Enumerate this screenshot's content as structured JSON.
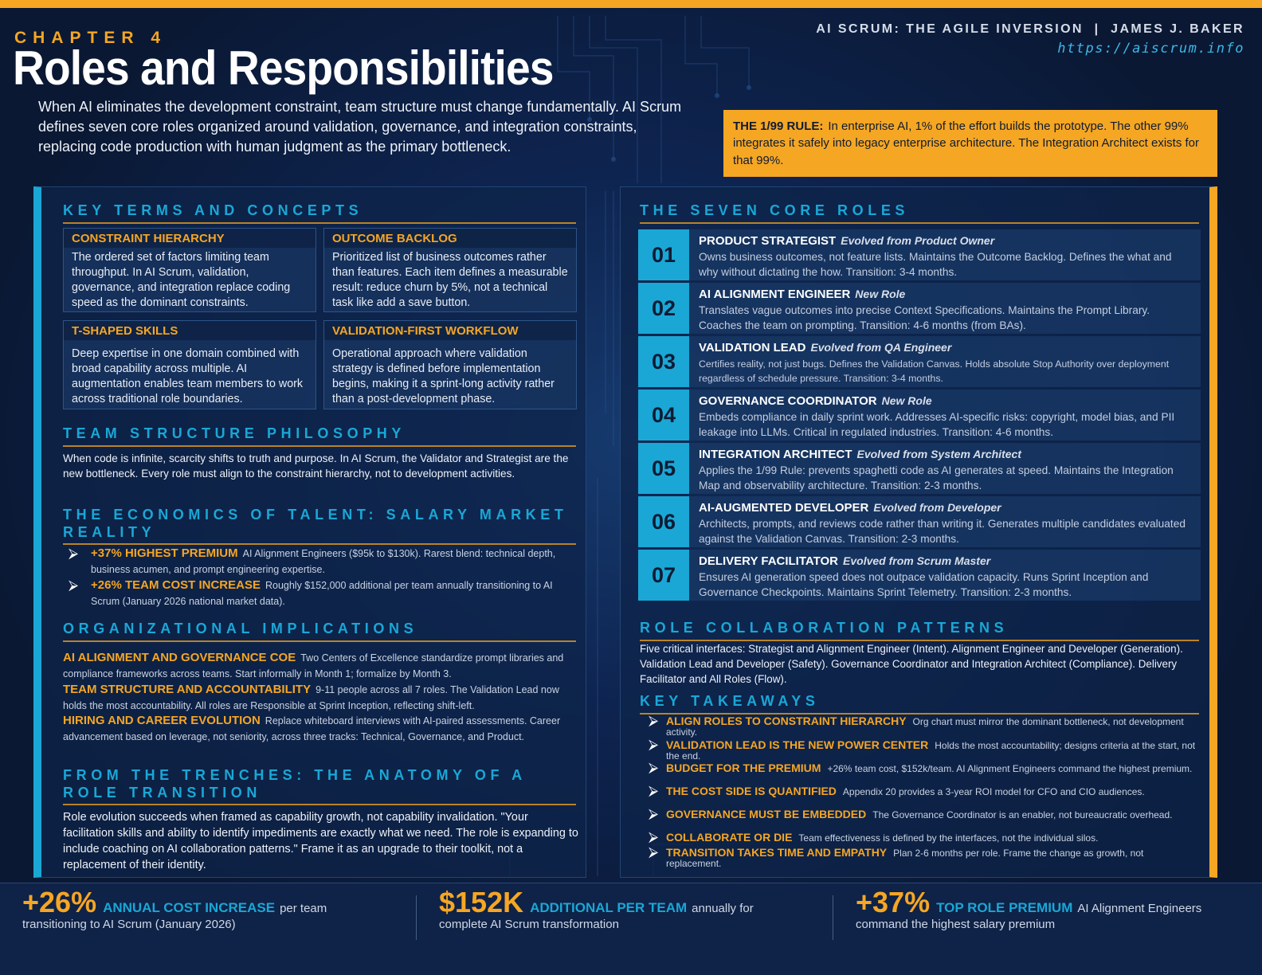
{
  "header": {
    "chapter": "CHAPTER 4",
    "title": "Roles and Responsibilities",
    "intro": "When AI eliminates the development constraint, team structure must change fundamentally. AI Scrum defines seven core roles organized around validation, governance, and integration constraints, replacing code production with human judgment as the primary bottleneck.",
    "brand_line": "AI SCRUM: THE AGILE INVERSION  |  JAMES J. BAKER",
    "url": "https://aiscrum.info"
  },
  "rule_box": {
    "label": "THE 1/99 RULE:",
    "text": "In enterprise AI, 1% of the effort builds the prototype. The other 99% integrates it safely into legacy enterprise architecture. The Integration Architect exists for that 99%."
  },
  "key_terms": {
    "heading": "KEY TERMS AND CONCEPTS",
    "items": [
      {
        "title": "CONSTRAINT HIERARCHY",
        "body": "The ordered set of factors limiting team throughput. In AI Scrum, validation, governance, and integration replace coding speed as the dominant constraints."
      },
      {
        "title": "OUTCOME BACKLOG",
        "body": "Prioritized list of business outcomes rather than features. Each item defines a measurable result: reduce churn by 5%, not a technical task like add a save button."
      },
      {
        "title": "T-SHAPED SKILLS",
        "body": "Deep expertise in one domain combined with broad capability across multiple. AI augmentation enables team members to work across traditional role boundaries."
      },
      {
        "title": "VALIDATION-FIRST WORKFLOW",
        "body": "Operational approach where validation strategy is defined before implementation begins, making it a sprint-long activity rather than a post-development phase."
      }
    ]
  },
  "team_structure": {
    "heading": "TEAM STRUCTURE PHILOSOPHY",
    "body": "When code is infinite, scarcity shifts to truth and purpose. In AI Scrum, the Validator and Strategist are the new bottleneck. Every role must align to the constraint hierarchy, not to development activities."
  },
  "economics": {
    "heading": "THE ECONOMICS OF TALENT: SALARY MARKET REALITY",
    "bullets": [
      {
        "head": "+37% HIGHEST PREMIUM",
        "text": "AI Alignment Engineers ($95k to $130k). Rarest blend: technical depth, business acumen, and prompt engineering expertise."
      },
      {
        "head": "+26% TEAM COST INCREASE",
        "text": "Roughly $152,000 additional per team annually transitioning to AI Scrum (January 2026 national market data)."
      }
    ]
  },
  "org_implications": {
    "heading": "ORGANIZATIONAL IMPLICATIONS",
    "items": [
      {
        "head": "AI ALIGNMENT AND GOVERNANCE COE",
        "text": "Two Centers of Excellence standardize prompt libraries and compliance frameworks across teams. Start informally in Month 1; formalize by Month 3."
      },
      {
        "head": "TEAM STRUCTURE AND ACCOUNTABILITY",
        "text": "9-11 people across all 7 roles. The Validation Lead now holds the most accountability. All roles are Responsible at Sprint Inception, reflecting shift-left."
      },
      {
        "head": "HIRING AND CAREER EVOLUTION",
        "text": "Replace whiteboard interviews with AI-paired assessments. Career advancement based on leverage, not seniority, across three tracks: Technical, Governance, and Product."
      }
    ]
  },
  "trenches": {
    "heading": "FROM THE TRENCHES: THE ANATOMY OF A ROLE TRANSITION",
    "body": "Role evolution succeeds when framed as capability growth, not capability invalidation. \"Your facilitation skills and ability to identify impediments are exactly what we need. The role is expanding to include coaching on AI collaboration patterns.\" Frame it as an upgrade to their toolkit, not a replacement of their identity."
  },
  "core_roles": {
    "heading": "THE SEVEN CORE ROLES",
    "items": [
      {
        "num": "01",
        "name": "PRODUCT STRATEGIST",
        "tag": "Evolved from Product Owner",
        "desc": "Owns business outcomes, not feature lists. Maintains the Outcome Backlog. Defines the what and why without dictating the how. Transition: 3-4 months."
      },
      {
        "num": "02",
        "name": "AI ALIGNMENT ENGINEER",
        "tag": "New Role",
        "desc": "Translates vague outcomes into precise Context Specifications. Maintains the Prompt Library. Coaches the team on prompting. Transition: 4-6 months (from BAs)."
      },
      {
        "num": "03",
        "name": "VALIDATION LEAD",
        "tag": "Evolved from QA Engineer",
        "desc": "Certifies reality, not just bugs. Defines the Validation Canvas. Holds absolute Stop Authority over deployment regardless of schedule pressure. Transition: 3-4 months."
      },
      {
        "num": "04",
        "name": "GOVERNANCE COORDINATOR",
        "tag": "New Role",
        "desc": "Embeds compliance in daily sprint work. Addresses AI-specific risks: copyright, model bias, and PII leakage into LLMs. Critical in regulated industries. Transition: 4-6 months."
      },
      {
        "num": "05",
        "name": "INTEGRATION ARCHITECT",
        "tag": "Evolved from System Architect",
        "desc": "Applies the 1/99 Rule: prevents spaghetti code as AI generates at speed. Maintains the Integration Map and observability architecture. Transition: 2-3 months."
      },
      {
        "num": "06",
        "name": "AI-AUGMENTED DEVELOPER",
        "tag": "Evolved from Developer",
        "desc": "Architects, prompts, and reviews code rather than writing it. Generates multiple candidates evaluated against the Validation Canvas. Transition: 2-3 months."
      },
      {
        "num": "07",
        "name": "DELIVERY FACILITATOR",
        "tag": "Evolved from Scrum Master",
        "desc": "Ensures AI generation speed does not outpace validation capacity. Runs Sprint Inception and Governance Checkpoints. Maintains Sprint Telemetry. Transition: 2-3 months."
      }
    ]
  },
  "collaboration": {
    "heading": "ROLE COLLABORATION PATTERNS",
    "body": "Five critical interfaces: Strategist and Alignment Engineer (Intent). Alignment Engineer and Developer (Generation). Validation Lead and Developer (Safety). Governance Coordinator and Integration Architect (Compliance). Delivery Facilitator and All Roles (Flow)."
  },
  "takeaways": {
    "heading": "KEY TAKEAWAYS",
    "items": [
      {
        "head": "ALIGN ROLES TO CONSTRAINT HIERARCHY",
        "text": "Org chart must mirror the dominant bottleneck, not development activity."
      },
      {
        "head": "VALIDATION LEAD IS THE NEW POWER CENTER",
        "text": "Holds the most accountability; designs criteria at the start, not the end."
      },
      {
        "head": "BUDGET FOR THE PREMIUM",
        "text": "+26% team cost, $152k/team. AI Alignment Engineers command the highest premium."
      },
      {
        "head": "THE COST SIDE IS QUANTIFIED",
        "text": "Appendix 20 provides a 3-year ROI model for CFO and CIO audiences."
      },
      {
        "head": "GOVERNANCE MUST BE EMBEDDED",
        "text": "The Governance Coordinator is an enabler, not bureaucratic overhead."
      },
      {
        "head": "COLLABORATE OR DIE",
        "text": "Team effectiveness is defined by the interfaces, not the individual silos."
      },
      {
        "head": "TRANSITION TAKES TIME AND EMPATHY",
        "text": "Plan 2-6 months per role. Frame the change as growth, not replacement."
      }
    ]
  },
  "footer": {
    "stats": [
      {
        "big": "+26%",
        "label": "ANNUAL COST INCREASE",
        "rest": "per team",
        "sub": "transitioning to AI Scrum (January 2026)"
      },
      {
        "big": "$152K",
        "label": "ADDITIONAL PER TEAM",
        "rest": "annually for",
        "sub": "complete AI Scrum transformation"
      },
      {
        "big": "+37%",
        "label": "TOP ROLE PREMIUM",
        "rest": "AI Alignment Engineers",
        "sub": "command the highest salary premium"
      }
    ]
  },
  "colors": {
    "accent_orange": "#f5a623",
    "accent_cyan": "#1aa7d6",
    "background": "#0b1a3a"
  }
}
